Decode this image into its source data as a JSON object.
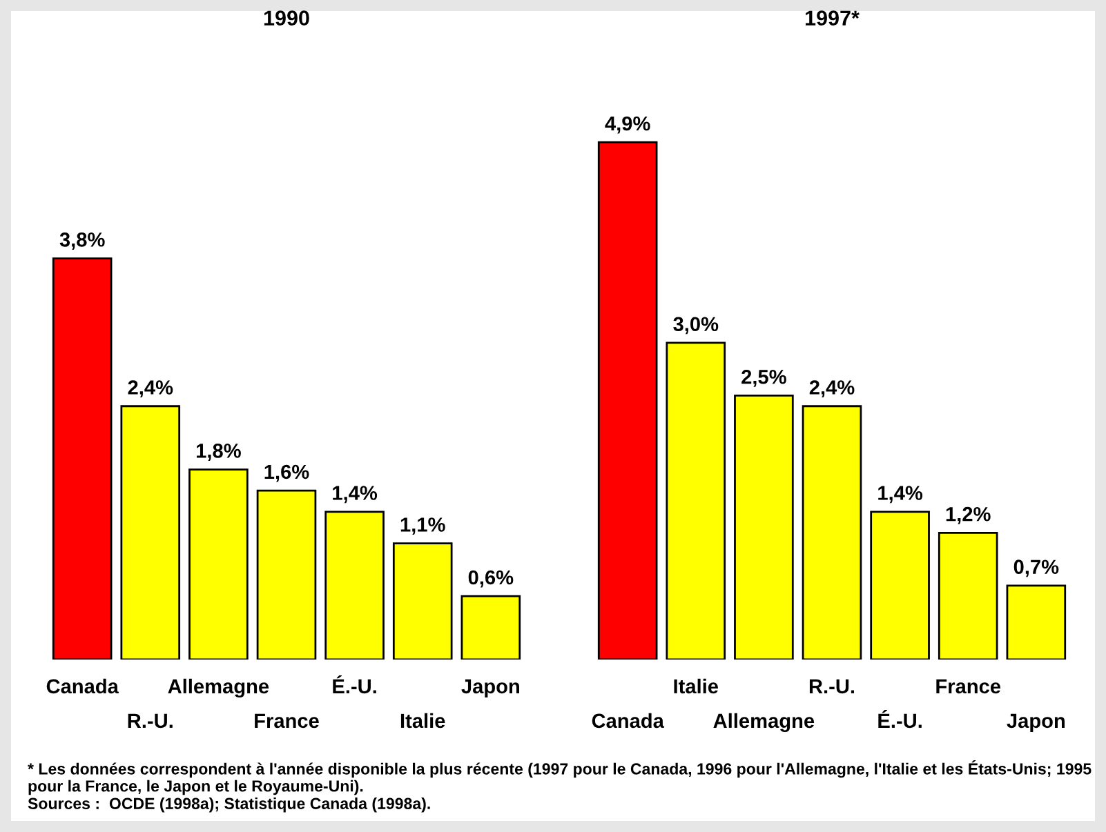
{
  "chart_data": [
    {
      "type": "bar",
      "title": "1990",
      "categories": [
        "Canada",
        "R.-U.",
        "Allemagne",
        "France",
        "É.-U.",
        "Italie",
        "Japon"
      ],
      "values": [
        3.8,
        2.4,
        1.8,
        1.6,
        1.4,
        1.1,
        0.6
      ],
      "colors": [
        "#ff0000",
        "#ffff00",
        "#ffff00",
        "#ffff00",
        "#ffff00",
        "#ffff00",
        "#ffff00"
      ],
      "value_labels": [
        "3,8%",
        "2,4%",
        "1,8%",
        "1,6%",
        "1,4%",
        "1,1%",
        "0,6%"
      ]
    },
    {
      "type": "bar",
      "title": "1997*",
      "categories": [
        "Canada",
        "Italie",
        "Allemagne",
        "R.-U.",
        "É.-U.",
        "France",
        "Japon"
      ],
      "values": [
        4.9,
        3.0,
        2.5,
        2.4,
        1.4,
        1.2,
        0.7
      ],
      "colors": [
        "#ff0000",
        "#ffff00",
        "#ffff00",
        "#ffff00",
        "#ffff00",
        "#ffff00",
        "#ffff00"
      ],
      "value_labels": [
        "4,9%",
        "3,0%",
        "2,5%",
        "2,4%",
        "1,4%",
        "1,2%",
        "0,7%"
      ],
      "annotations": [
        "* Les données correspondent à l'année disponible la plus récente (1997 pour le Canada, 1996 pour l'Allemagne, l'Italie et les États-Unis; 1995 pour la France, le Japon et le Royaume-Uni).",
        "Sources :  OCDE (1998a); Statistique Canada (1998a)."
      ]
    }
  ]
}
